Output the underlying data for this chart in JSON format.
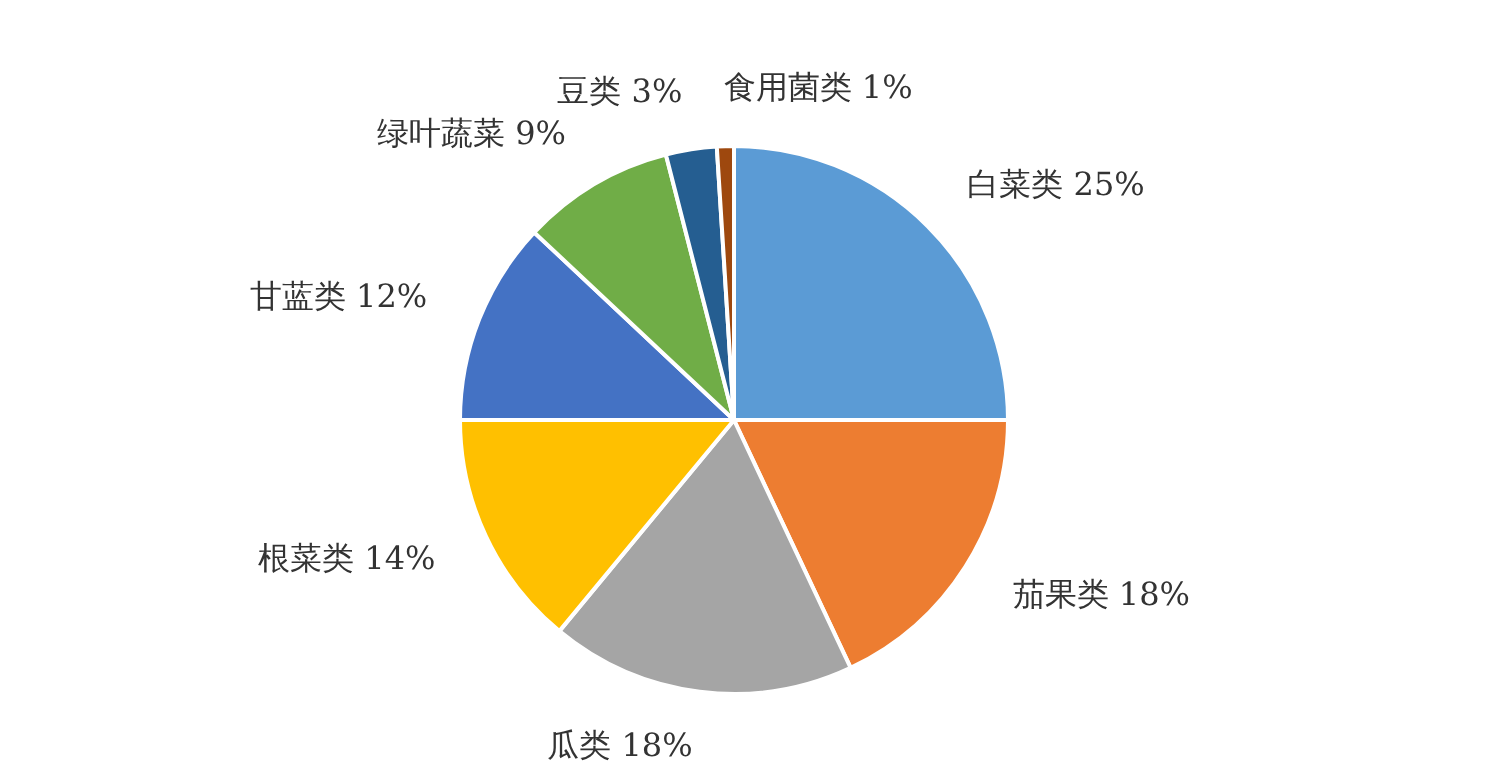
{
  "chart_data": {
    "type": "pie",
    "categories": [
      "白菜类",
      "茄果类",
      "瓜类",
      "根菜类",
      "甘蓝类",
      "绿叶蔬菜",
      "豆类",
      "食用菌类"
    ],
    "values": [
      25,
      18,
      18,
      14,
      12,
      9,
      3,
      1
    ],
    "value_labels": [
      "25%",
      "18%",
      "18%",
      "14%",
      "12%",
      "9%",
      "3%",
      "1%"
    ],
    "colors": [
      "#5b9bd5",
      "#ed7d31",
      "#a5a5a5",
      "#ffc000",
      "#4472c4",
      "#70ad47",
      "#255e91",
      "#9e480e"
    ],
    "legend": false
  }
}
